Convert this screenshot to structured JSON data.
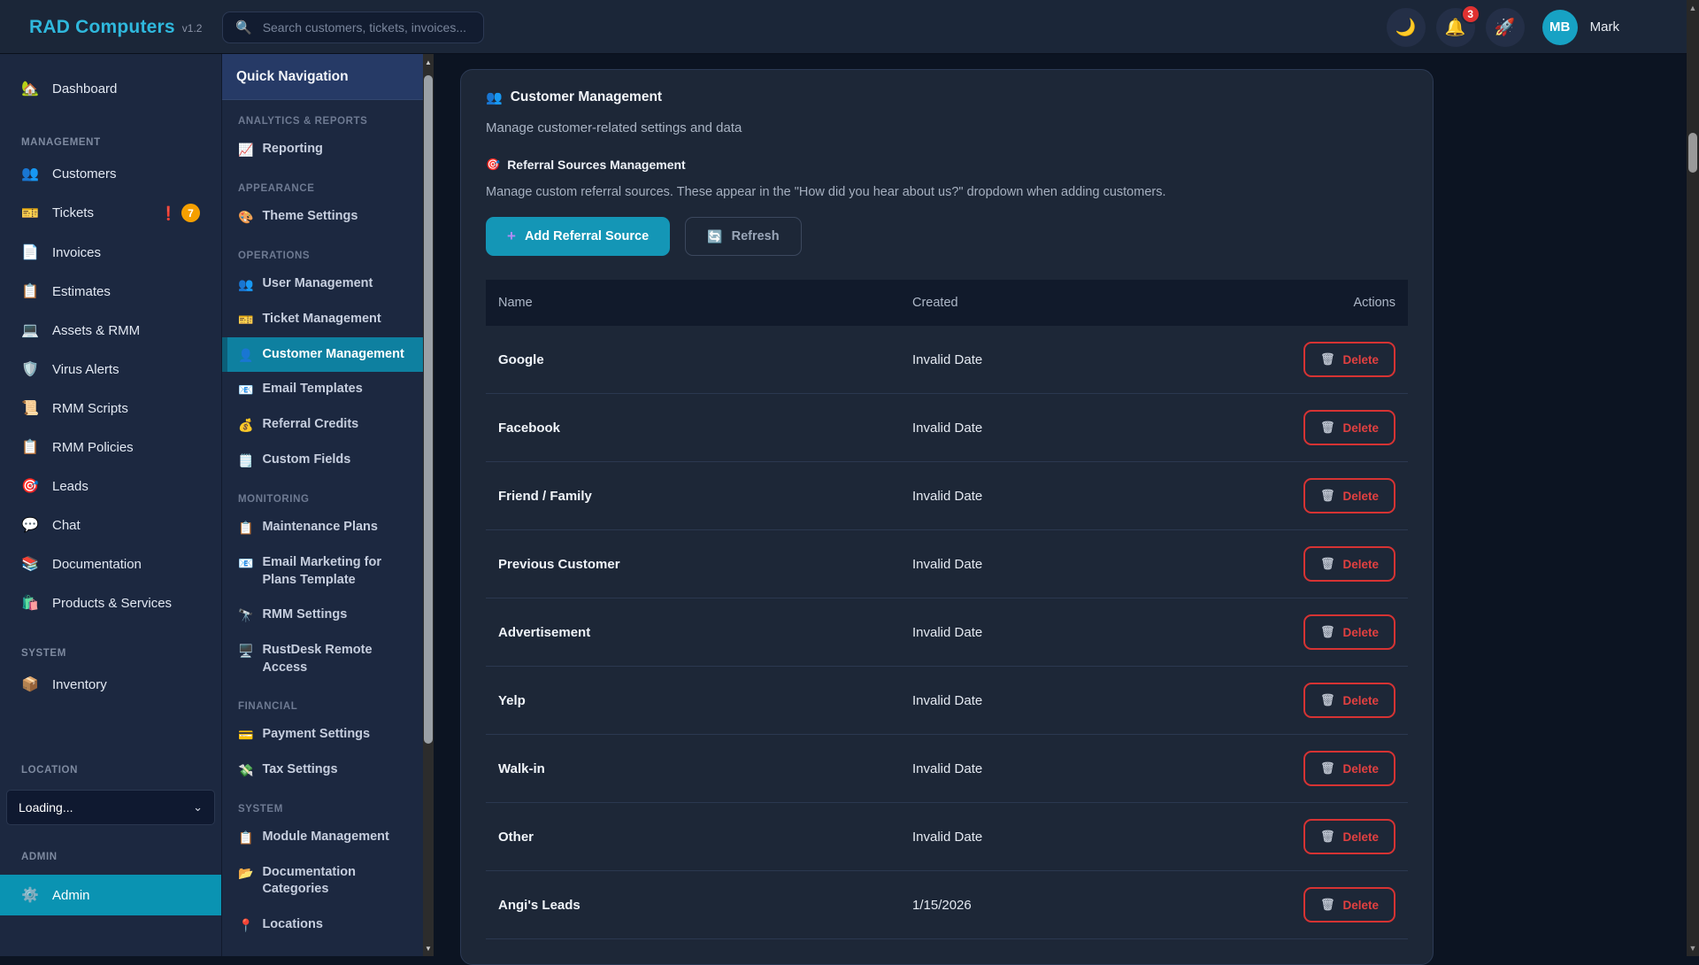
{
  "header": {
    "brand": "RAD Computers",
    "version": "v1.2",
    "search_icon": "🔍",
    "search_placeholder": "Search customers, tickets, invoices...",
    "theme_icon": "🌙",
    "bell_icon": "🔔",
    "notification_count": "3",
    "rocket_icon": "🚀",
    "user_initials": "MB",
    "user_name": "Mark"
  },
  "sidebar": {
    "dashboard": {
      "icon": "🏡",
      "label": "Dashboard"
    },
    "management_label": "MANAGEMENT",
    "management_items": [
      {
        "icon": "👥",
        "label": "Customers"
      },
      {
        "icon": "🎫",
        "label": "Tickets",
        "alert": "❗",
        "count": "7"
      },
      {
        "icon": "📄",
        "label": "Invoices"
      },
      {
        "icon": "📋",
        "label": "Estimates"
      },
      {
        "icon": "💻",
        "label": "Assets & RMM"
      },
      {
        "icon": "🛡️",
        "label": "Virus Alerts"
      },
      {
        "icon": "📜",
        "label": "RMM Scripts"
      },
      {
        "icon": "📋",
        "label": "RMM Policies"
      },
      {
        "icon": "🎯",
        "label": "Leads"
      },
      {
        "icon": "💬",
        "label": "Chat"
      },
      {
        "icon": "📚",
        "label": "Documentation"
      },
      {
        "icon": "🛍️",
        "label": "Products & Services"
      }
    ],
    "system_label": "SYSTEM",
    "inventory": {
      "icon": "📦",
      "label": "Inventory"
    },
    "location_label": "LOCATION",
    "location_select_value": "Loading...",
    "location_select_chevron": "⌄",
    "admin_label": "ADMIN",
    "admin": {
      "icon": "⚙️",
      "label": "Admin"
    }
  },
  "quicknav": {
    "title": "Quick Navigation",
    "groups": [
      {
        "label": "ANALYTICS & REPORTS",
        "items": [
          {
            "icon": "📈",
            "label": "Reporting"
          }
        ]
      },
      {
        "label": "APPEARANCE",
        "items": [
          {
            "icon": "🎨",
            "label": "Theme Settings"
          }
        ]
      },
      {
        "label": "OPERATIONS",
        "items": [
          {
            "icon": "👥",
            "label": "User Management"
          },
          {
            "icon": "🎫",
            "label": "Ticket Management"
          },
          {
            "icon": "👤",
            "label": "Customer Management"
          },
          {
            "icon": "📧",
            "label": "Email Templates"
          },
          {
            "icon": "💰",
            "label": "Referral Credits"
          },
          {
            "icon": "🗒️",
            "label": "Custom Fields"
          }
        ]
      },
      {
        "label": "MONITORING",
        "items": [
          {
            "icon": "📋",
            "label": "Maintenance Plans"
          },
          {
            "icon": "📧",
            "label": "Email Marketing for Plans Template"
          },
          {
            "icon": "🔭",
            "label": "RMM Settings"
          },
          {
            "icon": "🖥️",
            "label": "RustDesk Remote Access"
          }
        ]
      },
      {
        "label": "FINANCIAL",
        "items": [
          {
            "icon": "💳",
            "label": "Payment Settings"
          },
          {
            "icon": "💸",
            "label": "Tax Settings"
          }
        ]
      },
      {
        "label": "SYSTEM",
        "items": [
          {
            "icon": "📋",
            "label": "Module Management"
          },
          {
            "icon": "📂",
            "label": "Documentation Categories"
          },
          {
            "icon": "📍",
            "label": "Locations"
          }
        ]
      }
    ]
  },
  "main": {
    "title_icon": "👥",
    "title": "Customer Management",
    "subtitle": "Manage customer-related settings and data",
    "section_icon": "🎯",
    "section_title": "Referral Sources Management",
    "section_desc": "Manage custom referral sources. These appear in the \"How did you hear about us?\" dropdown when adding customers.",
    "add_button": {
      "icon": "+",
      "label": "Add Referral Source"
    },
    "refresh_button": {
      "icon": "🔄",
      "label": "Refresh"
    }
  },
  "table": {
    "columns": {
      "name": "Name",
      "created": "Created",
      "actions": "Actions"
    },
    "delete_icon": "🗑",
    "delete_label": "Delete",
    "rows": [
      {
        "name": "Google",
        "created": "Invalid Date"
      },
      {
        "name": "Facebook",
        "created": "Invalid Date"
      },
      {
        "name": "Friend / Family",
        "created": "Invalid Date"
      },
      {
        "name": "Previous Customer",
        "created": "Invalid Date"
      },
      {
        "name": "Advertisement",
        "created": "Invalid Date"
      },
      {
        "name": "Yelp",
        "created": "Invalid Date"
      },
      {
        "name": "Walk-in",
        "created": "Invalid Date"
      },
      {
        "name": "Other",
        "created": "Invalid Date"
      },
      {
        "name": "Angi's Leads",
        "created": "1/15/2026"
      }
    ]
  },
  "colors": {
    "brand_cyan": "#2fb8dd",
    "accent_teal": "#1496b6",
    "admin_active": "#0a93b2",
    "quicknav_active": "#0e80a0",
    "delete_red": "#dc2626",
    "badge_red": "#e03131",
    "badge_orange": "#f59f00",
    "avatar_cyan": "#17a2c4"
  }
}
